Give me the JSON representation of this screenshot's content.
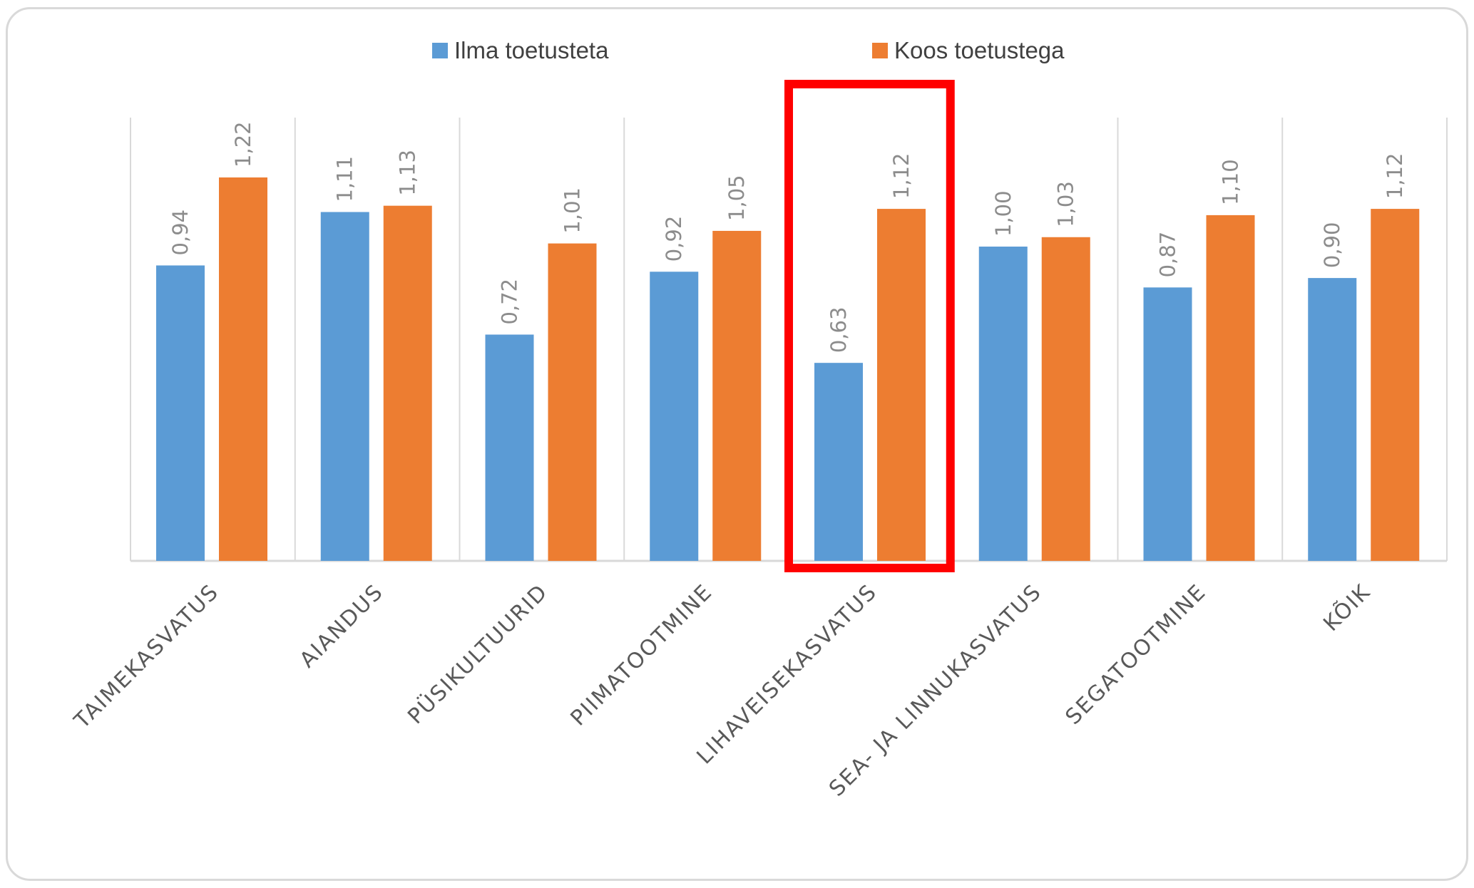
{
  "chart_data": {
    "type": "bar",
    "categories": [
      "TAIMEKASVATUS",
      "AIANDUS",
      "PÜSIKULTUURID",
      "PIIMATOOTMINE",
      "LIHAVEISEKASVATUS",
      "SEA- JA LINNUKASVATUS",
      "SEGATOOTMINE",
      "KÕIK"
    ],
    "series": [
      {
        "name": "Ilma toetusteta",
        "color": "#5b9bd5",
        "values": [
          0.94,
          1.11,
          0.72,
          0.92,
          0.63,
          1.0,
          0.87,
          0.9
        ],
        "labels": [
          "0,94",
          "1,11",
          "0,72",
          "0,92",
          "0,63",
          "1,00",
          "0,87",
          "0,90"
        ]
      },
      {
        "name": "Koos toetustega",
        "color": "#ed7d31",
        "values": [
          1.22,
          1.13,
          1.01,
          1.05,
          1.12,
          1.03,
          1.1,
          1.12
        ],
        "labels": [
          "1,22",
          "1,13",
          "1,01",
          "1,05",
          "1,12",
          "1,03",
          "1,10",
          "1,12"
        ]
      }
    ],
    "ylim": [
      0,
      1.22
    ],
    "grid": false,
    "legend_position": "top",
    "highlight": {
      "category": "LIHAVEISEKASVATUS",
      "style": "box",
      "color": "#ff0000"
    }
  }
}
